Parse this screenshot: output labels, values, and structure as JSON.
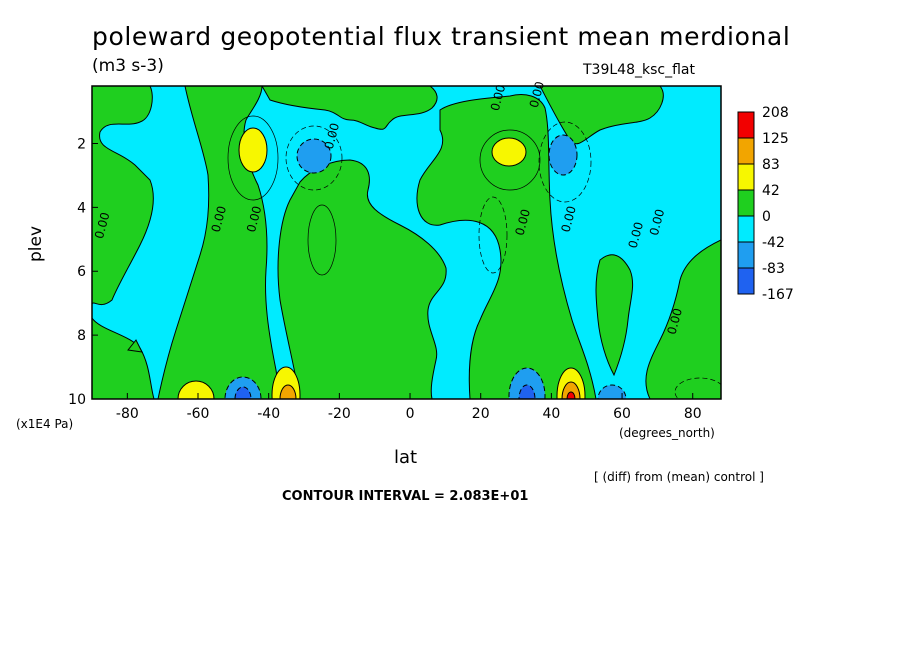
{
  "title": "poleward geopotential flux transient mean merdional",
  "units": "(m3 s-3)",
  "run_id": "T39L48_ksc_flat",
  "footer_diff": "[ (diff) from (mean) control ]",
  "footer_ci": "CONTOUR INTERVAL = 2.083E+01",
  "colors": {
    "c_m167": "#1f62f0",
    "c_m83": "#1f9ef0",
    "c_m42": "#00ebff",
    "c_0": "#1fcf1f",
    "c_42": "#f7f700",
    "c_83": "#f2a500",
    "c_125": "#f20000",
    "line": "#000000"
  },
  "chart_data": {
    "type": "contour",
    "xlabel": "lat",
    "xunits": "(degrees_north)",
    "ylabel": "plev",
    "yunits": "(x1E4 Pa)",
    "xlim": [
      -90,
      88
    ],
    "ylim": [
      0.2,
      10
    ],
    "y_inverted": true,
    "xticks": [
      -80,
      -60,
      -40,
      -20,
      0,
      20,
      40,
      60,
      80
    ],
    "xtick_labels": [
      "-80",
      "-60",
      "-40",
      "-20",
      "0",
      "20",
      "40",
      "60",
      "80"
    ],
    "yticks": [
      2,
      4,
      6,
      8,
      10
    ],
    "ytick_labels": [
      "2",
      "4",
      "6",
      "8",
      "10"
    ],
    "contour_interval": 20.83,
    "legend_levels": [
      "208",
      "125",
      "83",
      "42",
      "0",
      "-42",
      "-83",
      "-167"
    ],
    "contour_labels": [
      {
        "text": "0.00",
        "lat": -86,
        "plev": 4.6
      },
      {
        "text": "0.00",
        "lat": -53,
        "plev": 4.4
      },
      {
        "text": "0.00",
        "lat": -43,
        "plev": 4.4
      },
      {
        "text": "0.00",
        "lat": -21,
        "plev": 1.8
      },
      {
        "text": "0.00",
        "lat": 26,
        "plev": 0.6
      },
      {
        "text": "0.00",
        "lat": 37,
        "plev": 0.5
      },
      {
        "text": "0.00",
        "lat": 33,
        "plev": 4.5
      },
      {
        "text": "0.00",
        "lat": 46,
        "plev": 4.4
      },
      {
        "text": "0.00",
        "lat": 65,
        "plev": 4.9
      },
      {
        "text": "0.00",
        "lat": 71,
        "plev": 4.5
      },
      {
        "text": "0.00",
        "lat": 76,
        "plev": 7.6
      }
    ],
    "features": [
      {
        "kind": "positive",
        "lat": -43,
        "plev": 2.4,
        "peak": 83
      },
      {
        "kind": "negative",
        "lat": -26,
        "plev": 2.4,
        "peak": -83
      },
      {
        "kind": "positive",
        "lat": 29,
        "plev": 2.3,
        "peak": 83
      },
      {
        "kind": "negative",
        "lat": 46,
        "plev": 2.3,
        "peak": -83
      },
      {
        "kind": "positive",
        "lat": -57,
        "plev": 9.7,
        "peak": 83
      },
      {
        "kind": "negative",
        "lat": -47,
        "plev": 9.8,
        "peak": -125
      },
      {
        "kind": "positive",
        "lat": -34,
        "plev": 9.6,
        "peak": 125
      },
      {
        "kind": "negative",
        "lat": 37,
        "plev": 9.6,
        "peak": -125
      },
      {
        "kind": "positive",
        "lat": 47,
        "plev": 9.7,
        "peak": 125
      },
      {
        "kind": "negative",
        "lat": 57,
        "plev": 9.8,
        "peak": -83
      }
    ]
  }
}
